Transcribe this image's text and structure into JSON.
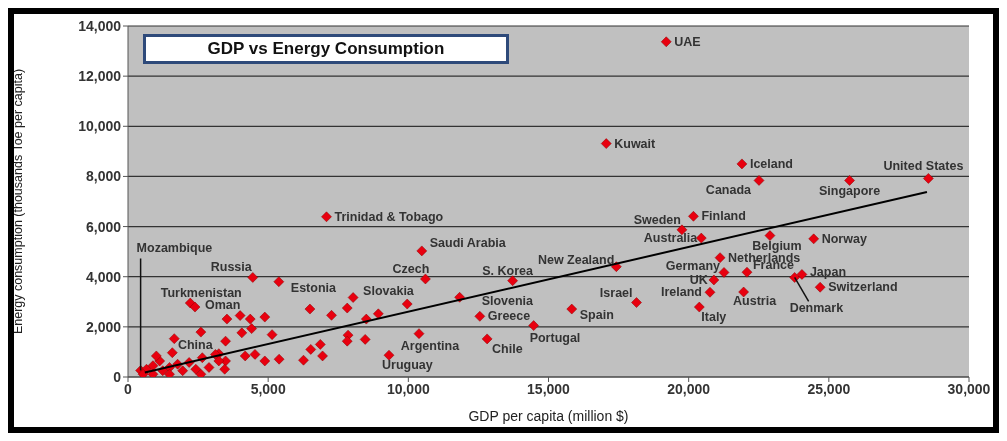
{
  "chart_data": {
    "type": "scatter",
    "title": "GDP vs Energy Consumption",
    "xlabel": "GDP per capita (million $)",
    "ylabel": "Energy consumption (thousands Toe per capita)",
    "xlim": [
      0,
      30000
    ],
    "ylim": [
      0,
      14000
    ],
    "xticks": [
      0,
      {
        "value": 5000,
        "label": "5,000"
      },
      {
        "value": 10000,
        "label": "10,000"
      },
      {
        "value": 15000,
        "label": "15,000"
      },
      {
        "value": 20000,
        "label": "20,000"
      },
      {
        "value": 25000,
        "label": "25,000"
      },
      {
        "value": 30000,
        "label": "30,000"
      }
    ],
    "yticks": [
      0,
      {
        "value": 2000,
        "label": "2,000"
      },
      {
        "value": 4000,
        "label": "4,000"
      },
      {
        "value": 6000,
        "label": "6,000"
      },
      {
        "value": 8000,
        "label": "8,000"
      },
      {
        "value": 10000,
        "label": "10,000"
      },
      {
        "value": 12000,
        "label": "12,000"
      },
      {
        "value": 14000,
        "label": "14,000"
      }
    ],
    "grid": "y",
    "series": [
      {
        "type": "scatter",
        "color": "#e8000f",
        "marker": "diamond",
        "x": [
          19200,
          17060,
          21900,
          28550,
          22510,
          25740,
          20170,
          19760,
          20450,
          22900,
          24460,
          21120,
          21260,
          22080,
          24040,
          23780,
          20900,
          20760,
          21960,
          24690,
          20380,
          7080,
          10480,
          17420,
          10610,
          13720,
          8030,
          11830,
          12550,
          15830,
          18140,
          14470,
          10380,
          12810,
          9310,
          4450,
          5380,
          2220,
          2390,
          1580,
          450,
          6490,
          7260,
          7820,
          8500,
          8930,
          9960,
          3530,
          4000,
          4360,
          4880,
          1650,
          2600,
          3480,
          4060,
          4410,
          5140,
          7850,
          7820,
          8460,
          6520,
          6860,
          6940,
          6260,
          4180,
          4530,
          4880,
          5390,
          3480,
          3450,
          3240,
          660,
          890,
          1130,
          1240,
          1480,
          1770,
          1950,
          2180,
          2420,
          2650,
          2890,
          3120,
          3240,
          890,
          540,
          1010,
          1480,
          2600
        ],
        "values": [
          13370,
          9310,
          8500,
          7920,
          7840,
          7840,
          6410,
          5870,
          5540,
          5640,
          5510,
          4760,
          4170,
          4180,
          4090,
          3970,
          3870,
          3380,
          3390,
          3580,
          2790,
          6390,
          5030,
          4400,
          3910,
          3840,
          3170,
          3180,
          2420,
          2710,
          2970,
          2050,
          1730,
          1520,
          870,
          3970,
          3800,
          2950,
          2790,
          970,
          260,
          2710,
          2460,
          2750,
          2310,
          2520,
          2910,
          2310,
          2450,
          2310,
          2390,
          1530,
          1790,
          1430,
          1760,
          1930,
          1690,
          1670,
          1430,
          1500,
          1100,
          1300,
          840,
          670,
          840,
          900,
          640,
          710,
          640,
          310,
          930,
          310,
          450,
          640,
          250,
          380,
          510,
          250,
          580,
          310,
          770,
          380,
          900,
          640,
          110,
          110,
          840,
          110,
          110
        ]
      },
      {
        "type": "line",
        "color": "#000000",
        "marker": "none",
        "x": [
          600,
          28500
        ],
        "values": [
          180,
          7380
        ]
      }
    ],
    "annotations": [
      {
        "text": "UAE",
        "x": 19200,
        "y": 13370
      },
      {
        "text": "Kuwait",
        "x": 17060,
        "y": 9310
      },
      {
        "text": "Iceland",
        "x": 21900,
        "y": 8500
      },
      {
        "text": "United States",
        "x": 28550,
        "y": 7920
      },
      {
        "text": "Canada",
        "x": 22510,
        "y": 7840
      },
      {
        "text": "Singapore",
        "x": 25740,
        "y": 7840
      },
      {
        "text": "Finland",
        "x": 20170,
        "y": 6410
      },
      {
        "text": "Sweden",
        "x": 19760,
        "y": 5870
      },
      {
        "text": "Australia",
        "x": 20450,
        "y": 5540
      },
      {
        "text": "Belgium",
        "x": 22900,
        "y": 5640
      },
      {
        "text": "Norway",
        "x": 24460,
        "y": 5510
      },
      {
        "text": "Netherlands",
        "x": 21120,
        "y": 4760
      },
      {
        "text": "Germany",
        "x": 21260,
        "y": 4170
      },
      {
        "text": "France",
        "x": 22080,
        "y": 4180
      },
      {
        "text": "Japan",
        "x": 24040,
        "y": 4090
      },
      {
        "text": "Denmark",
        "x": 23780,
        "y": 3970
      },
      {
        "text": "UK",
        "x": 20900,
        "y": 3870
      },
      {
        "text": "Ireland",
        "x": 20760,
        "y": 3380
      },
      {
        "text": "Austria",
        "x": 21960,
        "y": 3390
      },
      {
        "text": "Switzerland",
        "x": 24690,
        "y": 3580
      },
      {
        "text": "Italy",
        "x": 20380,
        "y": 2790
      },
      {
        "text": "Trinidad & Tobago",
        "x": 7080,
        "y": 6390
      },
      {
        "text": "Saudi Arabia",
        "x": 10480,
        "y": 5030
      },
      {
        "text": "New Zealand",
        "x": 17420,
        "y": 4400
      },
      {
        "text": "Czech",
        "x": 10610,
        "y": 3910
      },
      {
        "text": "S. Korea",
        "x": 13720,
        "y": 3840
      },
      {
        "text": "Slovakia",
        "x": 8030,
        "y": 3170
      },
      {
        "text": "Slovenia",
        "x": 11830,
        "y": 3180
      },
      {
        "text": "Greece",
        "x": 12550,
        "y": 2420
      },
      {
        "text": "Spain",
        "x": 15830,
        "y": 2710
      },
      {
        "text": "Israel",
        "x": 18140,
        "y": 2970
      },
      {
        "text": "Portugal",
        "x": 14470,
        "y": 2050
      },
      {
        "text": "Argentina",
        "x": 10380,
        "y": 1730
      },
      {
        "text": "Chile",
        "x": 12810,
        "y": 1520
      },
      {
        "text": "Uruguay",
        "x": 9310,
        "y": 870
      },
      {
        "text": "Russia",
        "x": 4450,
        "y": 3970
      },
      {
        "text": "Estonia",
        "x": 5380,
        "y": 3800
      },
      {
        "text": "Turkmenistan",
        "x": 2220,
        "y": 2950
      },
      {
        "text": "Oman",
        "x": 2390,
        "y": 2790
      },
      {
        "text": "China",
        "x": 1580,
        "y": 970
      },
      {
        "text": "Mozambique",
        "x": 450,
        "y": 260
      }
    ]
  }
}
